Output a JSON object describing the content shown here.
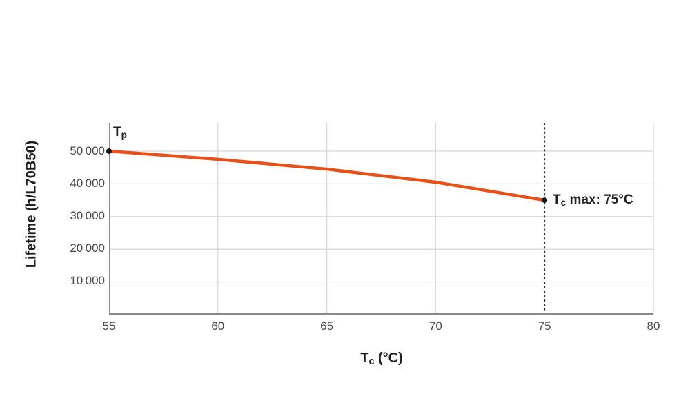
{
  "chart_data": {
    "type": "line",
    "title": "",
    "xlabel": "Tc (°C)",
    "ylabel": "Lifetime (h/L70B50)",
    "x": [
      55,
      60,
      65,
      70,
      75
    ],
    "series": [
      {
        "name": "Lifetime",
        "values": [
          50000,
          47500,
          44500,
          40500,
          35000
        ]
      }
    ],
    "xlim": [
      55,
      80
    ],
    "ylim": [
      0,
      58650
    ],
    "x_ticks": [
      55,
      60,
      65,
      70,
      75,
      80
    ],
    "y_ticks": [
      10000,
      20000,
      30000,
      40000,
      50000
    ],
    "grid": true,
    "legend": "none",
    "dashed_vline_x": 75,
    "line_color": "#e8501a",
    "endpoint_markers": true,
    "annotations": [
      {
        "text": "Tp",
        "x": 55,
        "y": 50000,
        "position": "above-right"
      },
      {
        "text": "Tc max: 75°C",
        "x": 75,
        "y": 35000,
        "position": "right"
      }
    ]
  },
  "labels": {
    "y_title": "Lifetime (h/L70B50)",
    "x_title": {
      "t": "T",
      "sub": "c",
      "rest": " (°C)"
    },
    "tp": {
      "t": "T",
      "sub": "p"
    },
    "tc_max": {
      "t": "T",
      "sub": "c",
      "rest": " max: 75°C"
    }
  },
  "axes": {
    "x_tick_labels": [
      "55",
      "60",
      "65",
      "70",
      "75",
      "80"
    ],
    "y_tick_labels": [
      "50 000",
      "40 000",
      "30 000",
      "20 000",
      "10 000"
    ]
  },
  "colors": {
    "line": "#e8501a",
    "grid": "#d8d8d8",
    "axis": "#8a8a8a",
    "dashed_line": "#2f2f2f",
    "dot": "#1a1a1a",
    "title_text": "#1f1f1f",
    "tick_text": "#4a4a4a",
    "background": "#ffffff"
  }
}
